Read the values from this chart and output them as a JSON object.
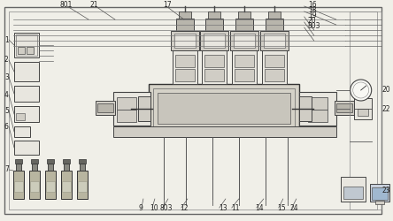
{
  "bg": "#f0efe8",
  "lc": "#555555",
  "fc_light": "#e8e6df",
  "fc_mid": "#d0cdc5",
  "fc_dark": "#b8b5ac",
  "fc_white": "#f5f4f0",
  "ec": "#444444",
  "figsize": [
    4.44,
    2.5
  ],
  "dpi": 100
}
